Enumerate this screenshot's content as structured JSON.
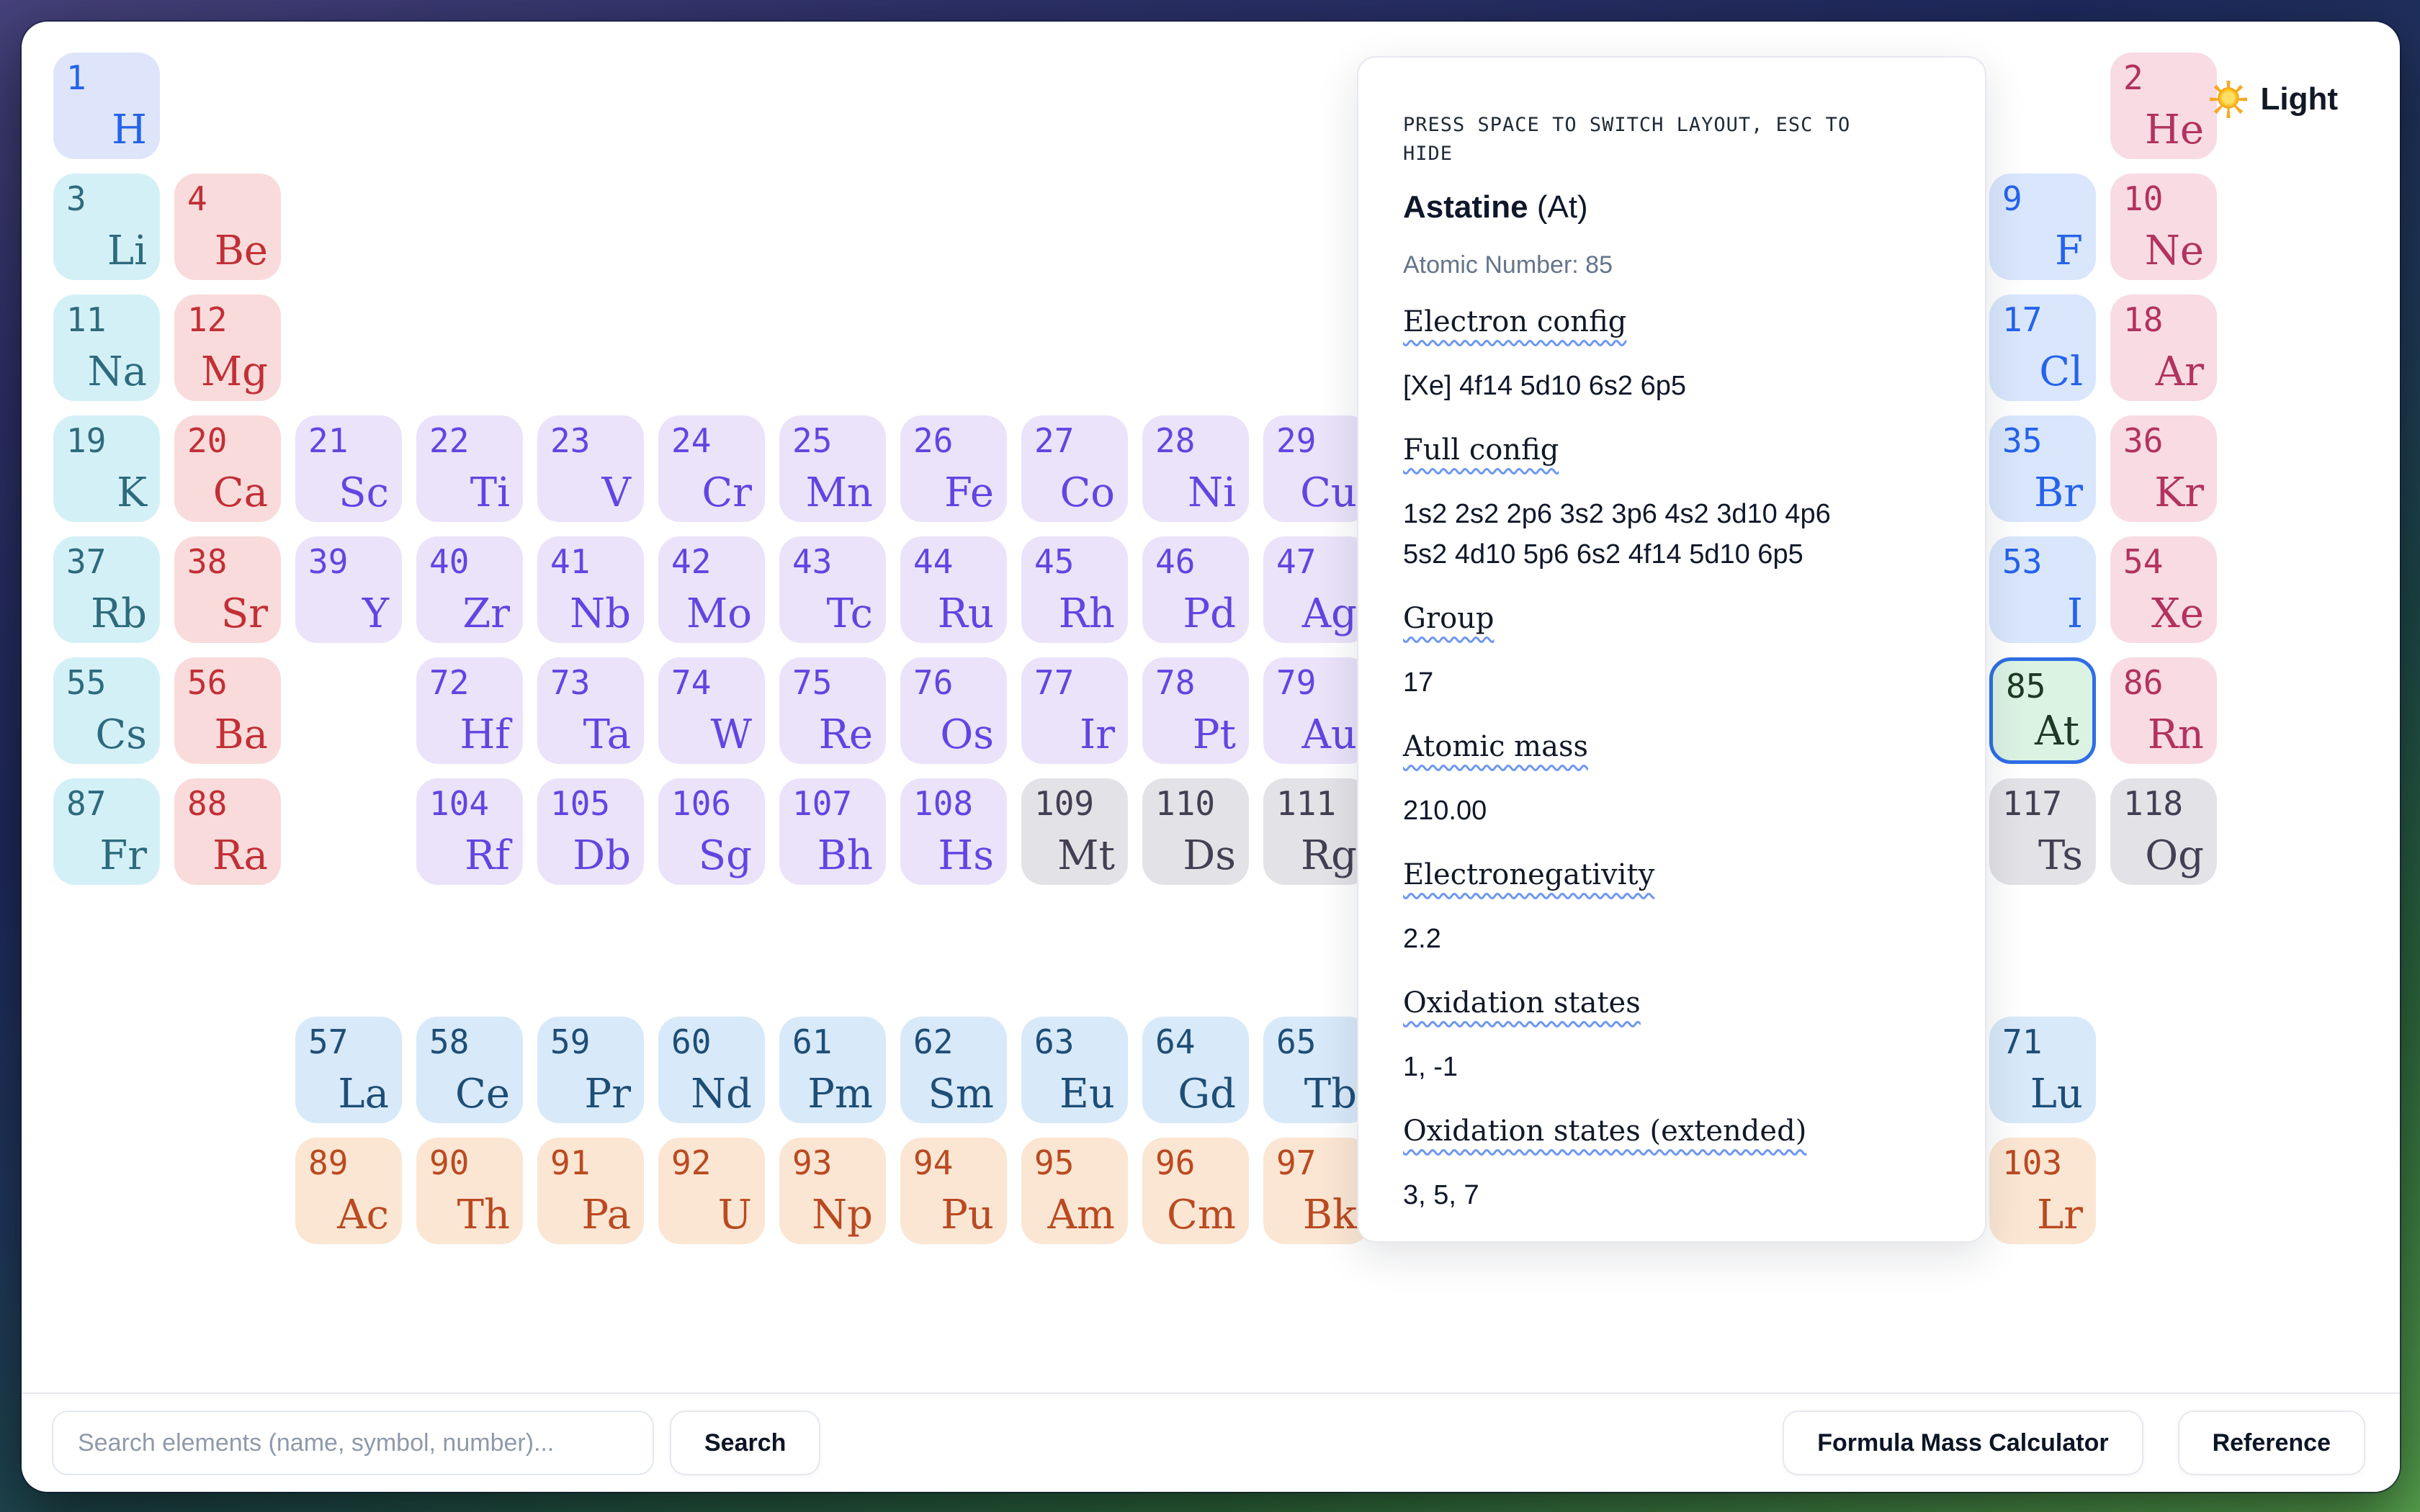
{
  "theme_toggle": {
    "icon": "sun-icon",
    "label": "Light"
  },
  "info_panel": {
    "hint": "PRESS SPACE TO SWITCH LAYOUT, ESC TO\nHIDE",
    "element_name": "Astatine",
    "element_symbol_paren": "(At)",
    "atomic_number_line": "Atomic Number: 85",
    "fields": [
      {
        "label": "Electron config",
        "value": "[Xe] 4f14 5d10 6s2 6p5"
      },
      {
        "label": "Full config",
        "value": "1s2 2s2 2p6 3s2 3p6 4s2 3d10 4p6\n5s2 4d10 5p6 6s2 4f14 5d10 6p5"
      },
      {
        "label": "Group",
        "value": "17"
      },
      {
        "label": "Atomic mass",
        "value": "210.00"
      },
      {
        "label": "Electronegativity",
        "value": "2.2"
      },
      {
        "label": "Oxidation states",
        "value": "1, -1"
      },
      {
        "label": "Oxidation states (extended)",
        "value": "3, 5, 7"
      }
    ]
  },
  "footer": {
    "search_placeholder": "Search elements (name, symbol, number)...",
    "search_button": "Search",
    "formula_mass_button": "Formula Mass Calculator",
    "reference_button": "Reference"
  },
  "table": {
    "categories": {
      "hydrogen": {
        "bg": "#dee5fa",
        "fg": "#2563eb"
      },
      "halogen": {
        "bg": "#d9e6fc",
        "fg": "#2563eb"
      },
      "alkali": {
        "bg": "#d4f0f7",
        "fg": "#2d6b7e"
      },
      "alkaline": {
        "bg": "#f9dbdb",
        "fg": "#c22f36"
      },
      "transition": {
        "bg": "#eae3fa",
        "fg": "#6245e1"
      },
      "noble": {
        "bg": "#f8dbe3",
        "fg": "#b23260"
      },
      "unknown": {
        "bg": "#e3e2e6",
        "fg": "#443f53"
      },
      "lanthanide": {
        "bg": "#d8e9f9",
        "fg": "#1d4e78"
      },
      "actinide": {
        "bg": "#fbe6d3",
        "fg": "#ba4a21"
      },
      "selected": {
        "bg": "#dbf3e3",
        "fg": "#1c3a24",
        "border": "#2e6ee6"
      }
    },
    "elements": [
      {
        "n": 1,
        "sym": "H",
        "col": 1,
        "row": 1,
        "cat": "hydrogen"
      },
      {
        "n": 2,
        "sym": "He",
        "col": 18,
        "row": 1,
        "cat": "noble"
      },
      {
        "n": 3,
        "sym": "Li",
        "col": 1,
        "row": 2,
        "cat": "alkali"
      },
      {
        "n": 4,
        "sym": "Be",
        "col": 2,
        "row": 2,
        "cat": "alkaline"
      },
      {
        "n": 9,
        "sym": "F",
        "col": 17,
        "row": 2,
        "cat": "halogen"
      },
      {
        "n": 10,
        "sym": "Ne",
        "col": 18,
        "row": 2,
        "cat": "noble"
      },
      {
        "n": 11,
        "sym": "Na",
        "col": 1,
        "row": 3,
        "cat": "alkali"
      },
      {
        "n": 12,
        "sym": "Mg",
        "col": 2,
        "row": 3,
        "cat": "alkaline"
      },
      {
        "n": 17,
        "sym": "Cl",
        "col": 17,
        "row": 3,
        "cat": "halogen"
      },
      {
        "n": 18,
        "sym": "Ar",
        "col": 18,
        "row": 3,
        "cat": "noble"
      },
      {
        "n": 19,
        "sym": "K",
        "col": 1,
        "row": 4,
        "cat": "alkali"
      },
      {
        "n": 20,
        "sym": "Ca",
        "col": 2,
        "row": 4,
        "cat": "alkaline"
      },
      {
        "n": 21,
        "sym": "Sc",
        "col": 3,
        "row": 4,
        "cat": "transition"
      },
      {
        "n": 22,
        "sym": "Ti",
        "col": 4,
        "row": 4,
        "cat": "transition"
      },
      {
        "n": 23,
        "sym": "V",
        "col": 5,
        "row": 4,
        "cat": "transition"
      },
      {
        "n": 24,
        "sym": "Cr",
        "col": 6,
        "row": 4,
        "cat": "transition"
      },
      {
        "n": 25,
        "sym": "Mn",
        "col": 7,
        "row": 4,
        "cat": "transition"
      },
      {
        "n": 26,
        "sym": "Fe",
        "col": 8,
        "row": 4,
        "cat": "transition"
      },
      {
        "n": 27,
        "sym": "Co",
        "col": 9,
        "row": 4,
        "cat": "transition"
      },
      {
        "n": 28,
        "sym": "Ni",
        "col": 10,
        "row": 4,
        "cat": "transition"
      },
      {
        "n": 29,
        "sym": "Cu",
        "col": 11,
        "row": 4,
        "cat": "transition"
      },
      {
        "n": 35,
        "sym": "Br",
        "col": 17,
        "row": 4,
        "cat": "halogen"
      },
      {
        "n": 36,
        "sym": "Kr",
        "col": 18,
        "row": 4,
        "cat": "noble"
      },
      {
        "n": 37,
        "sym": "Rb",
        "col": 1,
        "row": 5,
        "cat": "alkali"
      },
      {
        "n": 38,
        "sym": "Sr",
        "col": 2,
        "row": 5,
        "cat": "alkaline"
      },
      {
        "n": 39,
        "sym": "Y",
        "col": 3,
        "row": 5,
        "cat": "transition"
      },
      {
        "n": 40,
        "sym": "Zr",
        "col": 4,
        "row": 5,
        "cat": "transition"
      },
      {
        "n": 41,
        "sym": "Nb",
        "col": 5,
        "row": 5,
        "cat": "transition"
      },
      {
        "n": 42,
        "sym": "Mo",
        "col": 6,
        "row": 5,
        "cat": "transition"
      },
      {
        "n": 43,
        "sym": "Tc",
        "col": 7,
        "row": 5,
        "cat": "transition"
      },
      {
        "n": 44,
        "sym": "Ru",
        "col": 8,
        "row": 5,
        "cat": "transition"
      },
      {
        "n": 45,
        "sym": "Rh",
        "col": 9,
        "row": 5,
        "cat": "transition"
      },
      {
        "n": 46,
        "sym": "Pd",
        "col": 10,
        "row": 5,
        "cat": "transition"
      },
      {
        "n": 47,
        "sym": "Ag",
        "col": 11,
        "row": 5,
        "cat": "transition"
      },
      {
        "n": 53,
        "sym": "I",
        "col": 17,
        "row": 5,
        "cat": "halogen"
      },
      {
        "n": 54,
        "sym": "Xe",
        "col": 18,
        "row": 5,
        "cat": "noble"
      },
      {
        "n": 55,
        "sym": "Cs",
        "col": 1,
        "row": 6,
        "cat": "alkali"
      },
      {
        "n": 56,
        "sym": "Ba",
        "col": 2,
        "row": 6,
        "cat": "alkaline"
      },
      {
        "n": 72,
        "sym": "Hf",
        "col": 4,
        "row": 6,
        "cat": "transition"
      },
      {
        "n": 73,
        "sym": "Ta",
        "col": 5,
        "row": 6,
        "cat": "transition"
      },
      {
        "n": 74,
        "sym": "W",
        "col": 6,
        "row": 6,
        "cat": "transition"
      },
      {
        "n": 75,
        "sym": "Re",
        "col": 7,
        "row": 6,
        "cat": "transition"
      },
      {
        "n": 76,
        "sym": "Os",
        "col": 8,
        "row": 6,
        "cat": "transition"
      },
      {
        "n": 77,
        "sym": "Ir",
        "col": 9,
        "row": 6,
        "cat": "transition"
      },
      {
        "n": 78,
        "sym": "Pt",
        "col": 10,
        "row": 6,
        "cat": "transition"
      },
      {
        "n": 79,
        "sym": "Au",
        "col": 11,
        "row": 6,
        "cat": "transition"
      },
      {
        "n": 85,
        "sym": "At",
        "col": 17,
        "row": 6,
        "cat": "selected",
        "selected": true
      },
      {
        "n": 86,
        "sym": "Rn",
        "col": 18,
        "row": 6,
        "cat": "noble"
      },
      {
        "n": 87,
        "sym": "Fr",
        "col": 1,
        "row": 7,
        "cat": "alkali"
      },
      {
        "n": 88,
        "sym": "Ra",
        "col": 2,
        "row": 7,
        "cat": "alkaline"
      },
      {
        "n": 104,
        "sym": "Rf",
        "col": 4,
        "row": 7,
        "cat": "transition"
      },
      {
        "n": 105,
        "sym": "Db",
        "col": 5,
        "row": 7,
        "cat": "transition"
      },
      {
        "n": 106,
        "sym": "Sg",
        "col": 6,
        "row": 7,
        "cat": "transition"
      },
      {
        "n": 107,
        "sym": "Bh",
        "col": 7,
        "row": 7,
        "cat": "transition"
      },
      {
        "n": 108,
        "sym": "Hs",
        "col": 8,
        "row": 7,
        "cat": "transition"
      },
      {
        "n": 109,
        "sym": "Mt",
        "col": 9,
        "row": 7,
        "cat": "unknown"
      },
      {
        "n": 110,
        "sym": "Ds",
        "col": 10,
        "row": 7,
        "cat": "unknown"
      },
      {
        "n": 111,
        "sym": "Rg",
        "col": 11,
        "row": 7,
        "cat": "unknown"
      },
      {
        "n": 117,
        "sym": "Ts",
        "col": 17,
        "row": 7,
        "cat": "unknown"
      },
      {
        "n": 118,
        "sym": "Og",
        "col": 18,
        "row": 7,
        "cat": "unknown"
      },
      {
        "n": 57,
        "sym": "La",
        "col": 3,
        "row": 8,
        "cat": "lanthanide"
      },
      {
        "n": 58,
        "sym": "Ce",
        "col": 4,
        "row": 8,
        "cat": "lanthanide"
      },
      {
        "n": 59,
        "sym": "Pr",
        "col": 5,
        "row": 8,
        "cat": "lanthanide"
      },
      {
        "n": 60,
        "sym": "Nd",
        "col": 6,
        "row": 8,
        "cat": "lanthanide"
      },
      {
        "n": 61,
        "sym": "Pm",
        "col": 7,
        "row": 8,
        "cat": "lanthanide"
      },
      {
        "n": 62,
        "sym": "Sm",
        "col": 8,
        "row": 8,
        "cat": "lanthanide"
      },
      {
        "n": 63,
        "sym": "Eu",
        "col": 9,
        "row": 8,
        "cat": "lanthanide"
      },
      {
        "n": 64,
        "sym": "Gd",
        "col": 10,
        "row": 8,
        "cat": "lanthanide"
      },
      {
        "n": 65,
        "sym": "Tb",
        "col": 11,
        "row": 8,
        "cat": "lanthanide"
      },
      {
        "n": 71,
        "sym": "Lu",
        "col": 17,
        "row": 8,
        "cat": "lanthanide"
      },
      {
        "n": 89,
        "sym": "Ac",
        "col": 3,
        "row": 9,
        "cat": "actinide"
      },
      {
        "n": 90,
        "sym": "Th",
        "col": 4,
        "row": 9,
        "cat": "actinide"
      },
      {
        "n": 91,
        "sym": "Pa",
        "col": 5,
        "row": 9,
        "cat": "actinide"
      },
      {
        "n": 92,
        "sym": "U",
        "col": 6,
        "row": 9,
        "cat": "actinide"
      },
      {
        "n": 93,
        "sym": "Np",
        "col": 7,
        "row": 9,
        "cat": "actinide"
      },
      {
        "n": 94,
        "sym": "Pu",
        "col": 8,
        "row": 9,
        "cat": "actinide"
      },
      {
        "n": 95,
        "sym": "Am",
        "col": 9,
        "row": 9,
        "cat": "actinide"
      },
      {
        "n": 96,
        "sym": "Cm",
        "col": 10,
        "row": 9,
        "cat": "actinide"
      },
      {
        "n": 97,
        "sym": "Bk",
        "col": 11,
        "row": 9,
        "cat": "actinide"
      },
      {
        "n": 103,
        "sym": "Lr",
        "col": 17,
        "row": 9,
        "cat": "actinide"
      }
    ]
  }
}
